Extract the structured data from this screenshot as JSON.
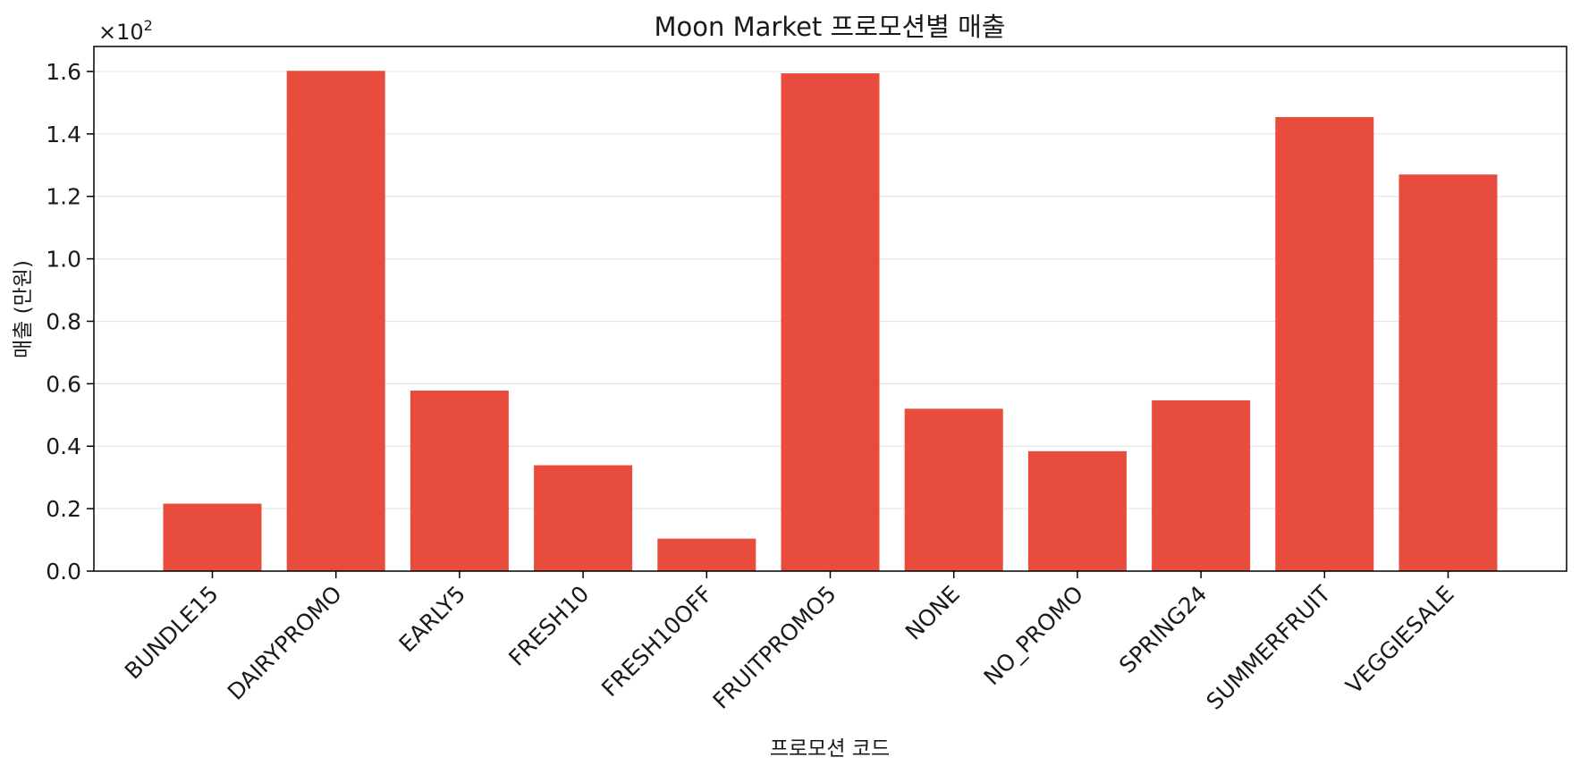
{
  "chart_data": {
    "type": "bar",
    "title": "Moon Market 프로모션별 매출",
    "xlabel": "프로모션 코드",
    "ylabel": "매출 (만원)",
    "y_multiplier_label": "×10",
    "y_multiplier_exponent": "2",
    "categories": [
      "BUNDLE15",
      "DAIRYPROMO",
      "EARLY5",
      "FRESH10",
      "FRESH10OFF",
      "FRUITPROMO5",
      "NONE",
      "NO_PROMO",
      "SPRING24",
      "SUMMERFRUIT",
      "VEGGIESALE"
    ],
    "values": [
      21.6,
      160.2,
      57.8,
      33.9,
      10.4,
      159.4,
      52.0,
      38.4,
      54.7,
      145.4,
      127.0
    ],
    "ylim": [
      0,
      168
    ],
    "yticks": [
      0,
      20,
      40,
      60,
      80,
      100,
      120,
      140,
      160
    ],
    "ytick_labels": [
      "0.0",
      "0.2",
      "0.4",
      "0.6",
      "0.8",
      "1.0",
      "1.2",
      "1.4",
      "1.6"
    ],
    "grid": "y",
    "legend": "none",
    "bar_color": "#e74c3c",
    "grid_color": "#e6e6e6",
    "axis_color": "#000000"
  }
}
